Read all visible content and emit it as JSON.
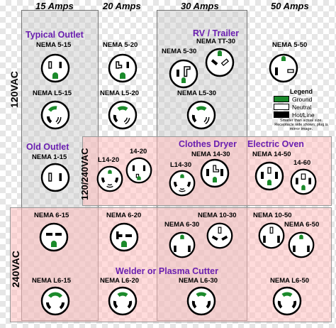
{
  "columns": {
    "c15": "15 Amps",
    "c20": "20 Amps",
    "c30": "30 Amps",
    "c50": "50 Amps"
  },
  "rows": {
    "r120": "120VAC",
    "r120240": "120/240VAC",
    "r240": "240VAC"
  },
  "groups": {
    "typical": "Typical Outlet",
    "rv": "RV / Trailer",
    "old": "Old Outlet",
    "dryer": "Clothes Dryer",
    "oven": "Electric Oven",
    "welder": "Welder or Plasma Cutter"
  },
  "labels": {
    "n5_15": "NEMA 5-15",
    "n5_20": "NEMA 5-20",
    "n5_30": "NEMA 5-30",
    "ntt30": "NEMA TT-30",
    "n5_50": "NEMA 5-50",
    "nl5_15": "NEMA L5-15",
    "nl5_20": "NEMA L5-20",
    "nl5_30": "NEMA L5-30",
    "n1_15": "NEMA 1-15",
    "l14_20": "L14-20",
    "s14_20": "14-20",
    "l14_30": "L14-30",
    "n14_30": "NEMA 14-30",
    "n14_50": "NEMA 14-50",
    "s14_60": "14-60",
    "n6_15": "NEMA 6-15",
    "n6_20": "NEMA 6-20",
    "n6_30": "NEMA 6-30",
    "n10_30": "NEMA 10-30",
    "n10_50": "NEMA 10-50",
    "n6_50": "NEMA 6-50",
    "nl6_15": "NEMA L6-15",
    "nl6_20": "NEMA L6-20",
    "nl6_30": "NEMA L6-30",
    "nl6_50": "NEMA L6-50"
  },
  "legend": {
    "title": "Legend",
    "items": [
      {
        "label": "Ground",
        "color": "#1a8a2a"
      },
      {
        "label": "Neutral",
        "color": "#ffffff"
      },
      {
        "label": "Hot/Line",
        "color": "#000000"
      }
    ],
    "note": "Smaller than actual size. Receptacle side shown; plug is mirror image."
  },
  "colors": {
    "ground": "#1a8a2a",
    "hot": "#000000",
    "neutral": "#ffffff",
    "accent": "#6a1fb0",
    "row_fill": "#ffbebe"
  }
}
